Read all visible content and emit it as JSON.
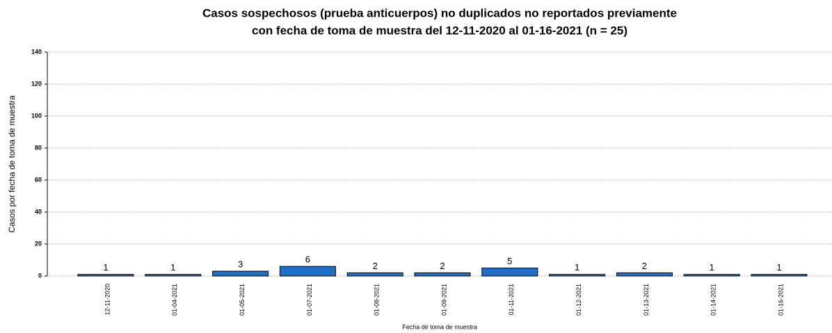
{
  "chart_data": {
    "type": "bar",
    "title": [
      "Casos sospechosos (prueba anticuerpos) no duplicados no reportados previamente",
      "con fecha de toma de muestra del 12-11-2020 al 01-16-2021 (n = 25)"
    ],
    "x_label": "Fecha de toma de muestra",
    "y_label": "Casos por fecha de toma de muestra",
    "categories": [
      "12-11-2020",
      "01-04-2021",
      "01-05-2021",
      "01-07-2021",
      "01-08-2021",
      "01-09-2021",
      "01-11-2021",
      "01-12-2021",
      "01-13-2021",
      "01-14-2021",
      "01-16-2021"
    ],
    "values": [
      1,
      1,
      3,
      6,
      2,
      2,
      5,
      1,
      2,
      1,
      1
    ],
    "color": "#1f6fc6",
    "ylim": [
      0,
      140
    ],
    "yticks": [
      0,
      20,
      40,
      60,
      80,
      100,
      120,
      140
    ],
    "grid": true
  }
}
